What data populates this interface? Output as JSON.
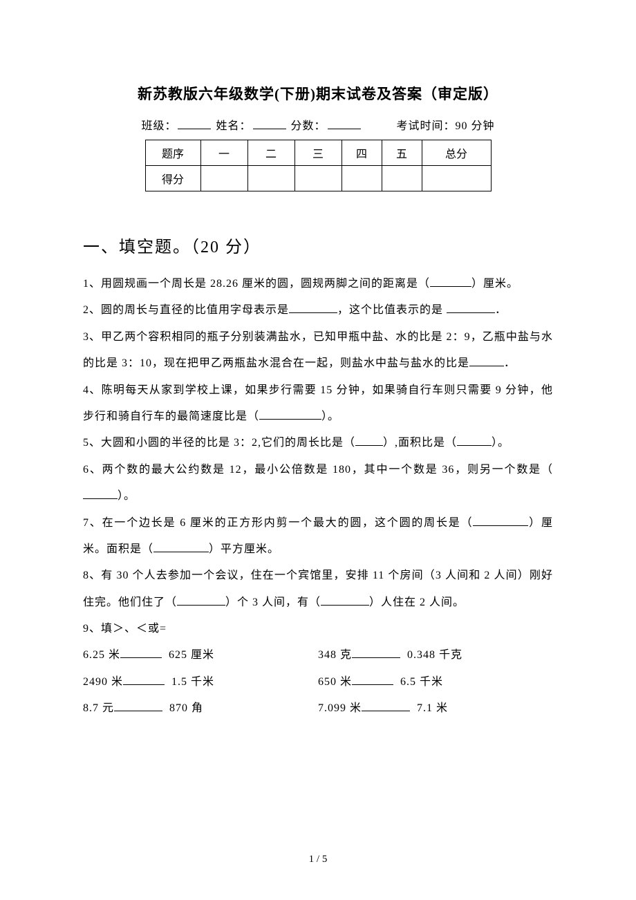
{
  "title": "新苏教版六年级数学(下册)期末试卷及答案（审定版）",
  "meta": {
    "class_label": "班级：",
    "name_label": "姓名：",
    "score_label": "分数：",
    "time_label": "考试时间：90 分钟"
  },
  "score_table": {
    "header": [
      "题序",
      "一",
      "二",
      "三",
      "四",
      "五",
      "总分"
    ],
    "row_label": "得分"
  },
  "section1": {
    "heading": "一、填空题。（20 分）",
    "q1_a": "1、用圆规画一个周长是 28.26 厘米的圆，圆规两脚之间的距离是（",
    "q1_b": "）厘米。",
    "q2_a": "2、圆的周长与直径的比值用字母表示是",
    "q2_b": "，这个比值表示的是",
    "q2_c": "．",
    "q3_a": "3、甲乙两个容积相同的瓶子分别装满盐水，已知甲瓶中盐、水的比是 2：9，乙瓶中盐与水的比是 3：10，现在把甲乙两瓶盐水混合在一起，则盐水中盐与盐水的比是",
    "q3_b": "．",
    "q4_a": "4、陈明每天从家到学校上课，如果步行需要 15 分钟，如果骑自行车则只需要 9 分钟，他步行和骑自行车的最简速度比是（",
    "q4_b": "）。",
    "q5_a": "5、大圆和小圆的半径的比是 3：2,它们的周长比是（",
    "q5_b": "）,面积比是（",
    "q5_c": "）。",
    "q6_a": "6、两个数的最大公约数是 12，最小公倍数是 180，其中一个数是 36，则另一个数是（",
    "q6_b": "）。",
    "q7_a": "7、在一个边长是 6 厘米的正方形内剪一个最大的圆，这个圆的周长是（",
    "q7_b": "）厘米。面积是（",
    "q7_c": "）平方厘米。",
    "q8_a": "8、有 30 个人去参加一个会议，住在一个宾馆里，安排 11 个房间（3 人间和 2 人间）刚好住完。他们住了（",
    "q8_b": "）个 3 人间，有（",
    "q8_c": "）人住在 2 人间。",
    "q9_head": "9、填＞、＜或=",
    "compare": [
      {
        "l1": "6.25 米",
        "l2": "625 厘米",
        "r1": "348 克",
        "r2": "0.348 千克"
      },
      {
        "l1": "2490 米",
        "l2": "1.5 千米",
        "r1": "650 米",
        "r2": "6.5 千米"
      },
      {
        "l1": "8.7 元",
        "l2": "870 角",
        "r1": "7.099 米",
        "r2": "7.1 米"
      }
    ]
  },
  "footer": "1 / 5"
}
